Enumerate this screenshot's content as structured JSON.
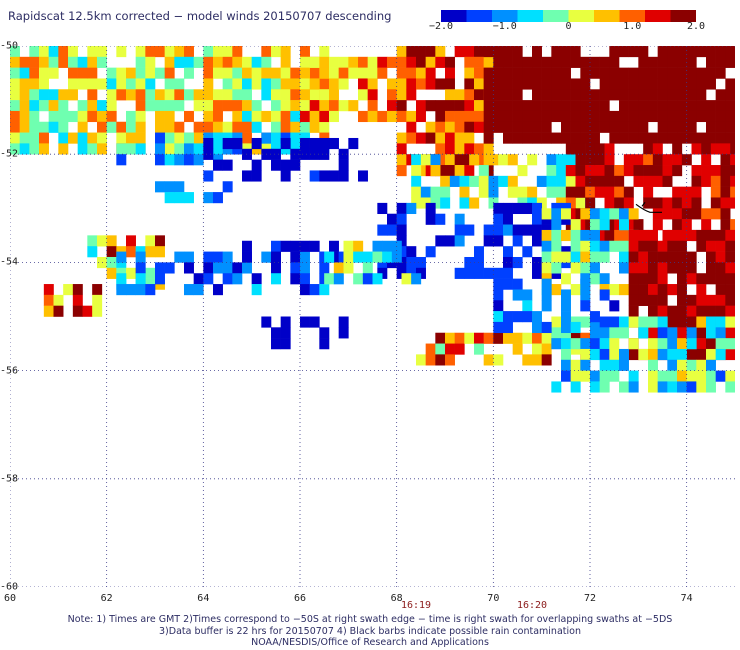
{
  "title": "Rapidscat 12.5km corrected − model winds 20150707 descending",
  "colorbar": {
    "ticks": [
      "−2.0",
      "−1.0",
      "0",
      "1.0",
      "2.0"
    ],
    "tick_values": [
      -2.0,
      -1.0,
      0,
      1.0,
      2.0
    ],
    "colors": [
      "#0000c8",
      "#0040ff",
      "#0090ff",
      "#00e0ff",
      "#6fffb0",
      "#e8ff40",
      "#ffc000",
      "#ff6000",
      "#e00000",
      "#8b0000"
    ]
  },
  "chart_data": {
    "type": "heatmap",
    "title": "Rapidscat 12.5km corrected − model winds 20150707 descending",
    "x_axis": {
      "ticks": [
        60,
        62,
        64,
        66,
        68,
        70,
        72,
        74
      ],
      "labels": [
        "60",
        "62",
        "64",
        "66",
        "68",
        "70",
        "72",
        "74"
      ],
      "range": [
        60,
        75
      ],
      "grid": "dotted"
    },
    "y_axis": {
      "ticks": [
        -50,
        -52,
        -54,
        -56,
        -58,
        -60
      ],
      "labels": [
        "-50",
        "-52",
        "-54",
        "-56",
        "-58",
        "-60"
      ],
      "range": [
        -60,
        -50
      ],
      "grid": "dotted"
    },
    "color_scale": {
      "min": -2.0,
      "max": 2.0,
      "label_ticks": [
        "−2.0",
        "−1.0",
        "0",
        "1.0",
        "2.0"
      ]
    },
    "time_labels": [
      {
        "text": "16:19",
        "lon": 68.4
      },
      {
        "text": "16:20",
        "lon": 70.8
      }
    ],
    "regions": [
      {
        "lon": [
          60.0,
          66.5
        ],
        "lat": [
          -51.9,
          -50.0
        ],
        "value": 0.3,
        "spread": 0.9,
        "density": 0.82
      },
      {
        "lon": [
          62.0,
          66.0
        ],
        "lat": [
          -52.1,
          -51.6
        ],
        "value": -0.9,
        "spread": 0.6,
        "density": 0.55
      },
      {
        "lon": [
          63.8,
          67.4
        ],
        "lat": [
          -52.5,
          -51.7
        ],
        "value": -1.8,
        "spread": 0.3,
        "density": 0.5
      },
      {
        "lon": [
          63.0,
          64.5
        ],
        "lat": [
          -52.9,
          -52.3
        ],
        "value": -1.0,
        "spread": 0.5,
        "density": 0.45
      },
      {
        "lon": [
          66.0,
          68.0
        ],
        "lat": [
          -51.4,
          -50.2
        ],
        "value": 0.8,
        "spread": 0.8,
        "density": 0.7
      },
      {
        "lon": [
          68.0,
          70.0
        ],
        "lat": [
          -52.3,
          -50.0
        ],
        "value": 1.2,
        "spread": 0.8,
        "density": 0.85
      },
      {
        "lon": [
          69.8,
          75.0
        ],
        "lat": [
          -51.8,
          -50.0
        ],
        "value": 2.0,
        "spread": 0.2,
        "density": 0.9
      },
      {
        "lon": [
          68.3,
          72.0
        ],
        "lat": [
          -53.0,
          -52.0
        ],
        "value": -0.1,
        "spread": 0.9,
        "density": 0.7
      },
      {
        "lon": [
          71.5,
          75.0
        ],
        "lat": [
          -53.5,
          -51.8
        ],
        "value": 1.6,
        "spread": 0.5,
        "density": 0.78
      },
      {
        "lon": [
          67.6,
          71.5
        ],
        "lat": [
          -54.3,
          -52.9
        ],
        "value": -1.6,
        "spread": 0.5,
        "density": 0.6
      },
      {
        "lon": [
          71.0,
          73.0
        ],
        "lat": [
          -54.5,
          -53.0
        ],
        "value": -0.2,
        "spread": 0.9,
        "density": 0.75
      },
      {
        "lon": [
          72.8,
          75.0
        ],
        "lat": [
          -55.8,
          -53.4
        ],
        "value": 1.7,
        "spread": 0.5,
        "density": 0.9
      },
      {
        "lon": [
          61.6,
          63.2
        ],
        "lat": [
          -54.4,
          -53.5
        ],
        "value": 0.6,
        "spread": 1.2,
        "density": 0.75
      },
      {
        "lon": [
          60.7,
          61.9
        ],
        "lat": [
          -55.0,
          -54.4
        ],
        "value": 0.9,
        "spread": 1.0,
        "density": 0.75
      },
      {
        "lon": [
          62.0,
          66.5
        ],
        "lat": [
          -54.5,
          -53.8
        ],
        "value": -1.3,
        "spread": 0.6,
        "density": 0.55
      },
      {
        "lon": [
          64.6,
          67.0
        ],
        "lat": [
          -54.0,
          -53.6
        ],
        "value": -1.7,
        "spread": 0.3,
        "density": 0.6
      },
      {
        "lon": [
          66.5,
          68.5
        ],
        "lat": [
          -54.4,
          -53.6
        ],
        "value": -0.4,
        "spread": 1.0,
        "density": 0.55
      },
      {
        "lon": [
          65.0,
          67.0
        ],
        "lat": [
          -55.6,
          -55.0
        ],
        "value": -1.9,
        "spread": 0.2,
        "density": 0.4
      },
      {
        "lon": [
          68.4,
          72.2
        ],
        "lat": [
          -55.9,
          -55.3
        ],
        "value": 1.0,
        "spread": 1.1,
        "density": 0.65
      },
      {
        "lon": [
          71.2,
          75.0
        ],
        "lat": [
          -56.3,
          -55.0
        ],
        "value": -0.4,
        "spread": 0.9,
        "density": 0.72
      },
      {
        "lon": [
          70.0,
          72.6
        ],
        "lat": [
          -55.2,
          -54.3
        ],
        "value": -1.2,
        "spread": 0.6,
        "density": 0.55
      }
    ],
    "rain_flags": [
      {
        "lon": 73.2,
        "lat": -53.0
      }
    ]
  },
  "notes": [
    "Note: 1) Times are GMT 2)Times correspond to −50S at right swath edge − time is right swath for overlapping swaths at −5DS",
    "3)Data buffer is 22 hrs for 20150707 4) Black barbs indicate possible rain contamination",
    "NOAA/NESDIS/Office of Research and Applications"
  ]
}
